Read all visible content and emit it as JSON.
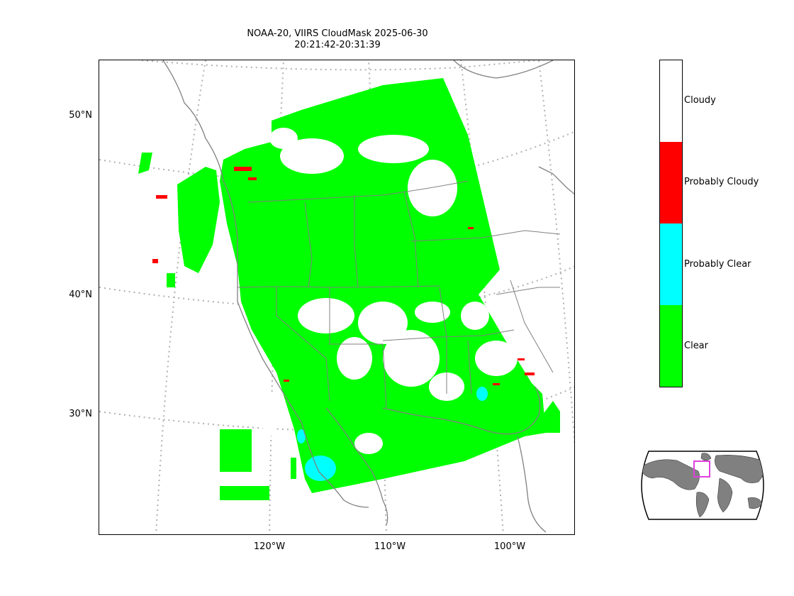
{
  "title_line1": "NOAA-20, VIIRS CloudMask 2025-06-30",
  "title_line2": "20:21:42-20:31:39",
  "lat_labels": [
    "50°N",
    "40°N",
    "30°N"
  ],
  "lon_labels": [
    "120°W",
    "110°W",
    "100°W"
  ],
  "colorbar": [
    {
      "label": "Cloudy",
      "color": "#ffffff"
    },
    {
      "label": "Probably Cloudy",
      "color": "#ff0000"
    },
    {
      "label": "Probably Clear",
      "color": "#00ffff"
    },
    {
      "label": "Clear",
      "color": "#00ff00"
    }
  ],
  "colors": {
    "clear": "#00ff00",
    "probably_clear": "#00ffff",
    "probably_cloudy": "#ff0000",
    "cloudy": "#ffffff",
    "coast": "#808080",
    "graticule": "#b0b0b0",
    "inset_land": "#808080",
    "inset_box": "#e040e0"
  }
}
